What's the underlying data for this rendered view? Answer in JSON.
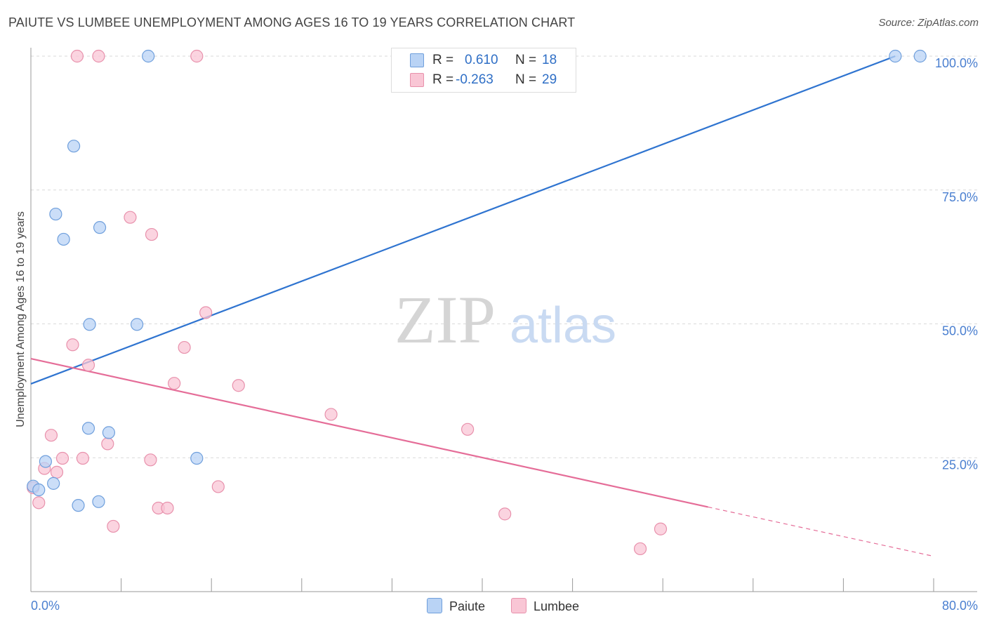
{
  "title": "PAIUTE VS LUMBEE UNEMPLOYMENT AMONG AGES 16 TO 19 YEARS CORRELATION CHART",
  "source": "Source: ZipAtlas.com",
  "watermark": {
    "zip": "ZIP",
    "atlas": "atlas"
  },
  "stats": {
    "paiute": {
      "r_label": "R =",
      "r_value": "0.610",
      "n_label": "N =",
      "n_value": "18"
    },
    "lumbee": {
      "r_label": "R =",
      "r_value": "-0.263",
      "n_label": "N =",
      "n_value": "29"
    }
  },
  "legend": {
    "paiute": "Paiute",
    "lumbee": "Lumbee"
  },
  "colors": {
    "paiute_fill": "#b9d3f5",
    "paiute_stroke": "#6f9fdc",
    "paiute_line": "#2f74d0",
    "lumbee_fill": "#f9c6d5",
    "lumbee_stroke": "#e891ac",
    "lumbee_line": "#e56d98",
    "tick_label": "#4a7fd0",
    "grid": "#d9d9d9"
  },
  "chart_data": {
    "type": "scatter",
    "title": "PAIUTE VS LUMBEE UNEMPLOYMENT AMONG AGES 16 TO 19 YEARS CORRELATION CHART",
    "xlabel": "",
    "ylabel": "Unemployment Among Ages 16 to 19 years",
    "xlim": [
      0,
      80
    ],
    "ylim": [
      0,
      104
    ],
    "x_tick_labels": [
      {
        "value": 0,
        "label": "0.0%"
      },
      {
        "value": 80,
        "label": "80.0%"
      }
    ],
    "y_tick_labels": [
      {
        "value": 25,
        "label": "25.0%"
      },
      {
        "value": 50,
        "label": "50.0%"
      },
      {
        "value": 75,
        "label": "75.0%"
      },
      {
        "value": 100,
        "label": "100.0%"
      }
    ],
    "grid": true,
    "series": [
      {
        "name": "Paiute",
        "points": [
          {
            "x": 0.2,
            "y": 19.7
          },
          {
            "x": 0.7,
            "y": 19.0
          },
          {
            "x": 1.3,
            "y": 24.3
          },
          {
            "x": 2.0,
            "y": 20.2
          },
          {
            "x": 2.2,
            "y": 70.5
          },
          {
            "x": 2.9,
            "y": 65.8
          },
          {
            "x": 3.8,
            "y": 83.2
          },
          {
            "x": 4.2,
            "y": 16.1
          },
          {
            "x": 5.1,
            "y": 30.5
          },
          {
            "x": 5.2,
            "y": 49.9
          },
          {
            "x": 6.0,
            "y": 16.8
          },
          {
            "x": 6.1,
            "y": 68.0
          },
          {
            "x": 6.9,
            "y": 29.7
          },
          {
            "x": 9.4,
            "y": 49.9
          },
          {
            "x": 10.4,
            "y": 100.0
          },
          {
            "x": 14.7,
            "y": 24.9
          },
          {
            "x": 76.6,
            "y": 100.0
          },
          {
            "x": 78.8,
            "y": 100.0
          }
        ],
        "trend": {
          "x_start": 0,
          "y_start": 38.8,
          "x_end": 76.6,
          "y_end": 100.0
        }
      },
      {
        "name": "Lumbee",
        "points": [
          {
            "x": 0.2,
            "y": 19.4
          },
          {
            "x": 0.7,
            "y": 16.6
          },
          {
            "x": 1.2,
            "y": 23.0
          },
          {
            "x": 1.8,
            "y": 29.2
          },
          {
            "x": 2.3,
            "y": 22.3
          },
          {
            "x": 2.8,
            "y": 24.9
          },
          {
            "x": 3.7,
            "y": 46.1
          },
          {
            "x": 4.1,
            "y": 100.0
          },
          {
            "x": 4.6,
            "y": 24.9
          },
          {
            "x": 5.1,
            "y": 42.3
          },
          {
            "x": 6.0,
            "y": 100.0
          },
          {
            "x": 6.8,
            "y": 27.6
          },
          {
            "x": 7.3,
            "y": 12.2
          },
          {
            "x": 8.8,
            "y": 69.9
          },
          {
            "x": 10.6,
            "y": 24.6
          },
          {
            "x": 10.7,
            "y": 66.7
          },
          {
            "x": 11.3,
            "y": 15.6
          },
          {
            "x": 12.1,
            "y": 15.6
          },
          {
            "x": 12.7,
            "y": 38.9
          },
          {
            "x": 13.6,
            "y": 45.6
          },
          {
            "x": 14.7,
            "y": 100.0
          },
          {
            "x": 15.5,
            "y": 52.1
          },
          {
            "x": 16.6,
            "y": 19.6
          },
          {
            "x": 18.4,
            "y": 38.5
          },
          {
            "x": 26.6,
            "y": 33.1
          },
          {
            "x": 38.7,
            "y": 30.3
          },
          {
            "x": 42.0,
            "y": 14.5
          },
          {
            "x": 54.0,
            "y": 8.0
          },
          {
            "x": 55.8,
            "y": 11.7
          }
        ],
        "trend": {
          "x_start": 0,
          "y_start": 43.5,
          "x_end": 60.0,
          "y_end": 15.8
        },
        "trend_extension": {
          "x_start": 60.0,
          "y_start": 15.8,
          "x_end": 80.0,
          "y_end": 6.6
        }
      }
    ]
  }
}
